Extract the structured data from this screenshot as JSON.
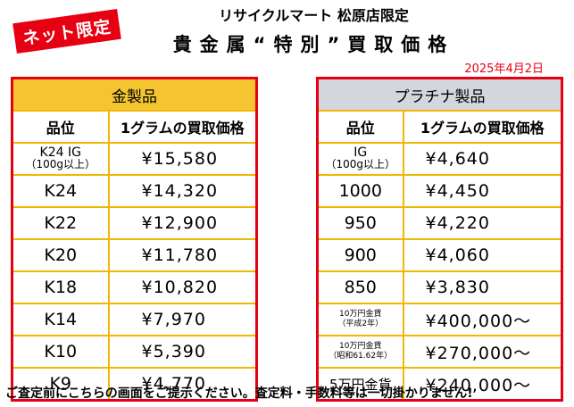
{
  "badge": "ネット限定",
  "shop_name": "リサイクルマート 松原店限定",
  "title": "貴金属“特別”買取価格",
  "date": "2025年4月2日",
  "gold_table": {
    "header": "金製品",
    "col_grade": "品位",
    "col_price": "1グラムの買取価格",
    "rows": [
      {
        "grade": "K24 IG",
        "note": "（100g以上）",
        "price": "¥15,580"
      },
      {
        "grade": "K24",
        "price": "¥14,320"
      },
      {
        "grade": "K22",
        "price": "¥12,900"
      },
      {
        "grade": "K20",
        "price": "¥11,780"
      },
      {
        "grade": "K18",
        "price": "¥10,820"
      },
      {
        "grade": "K14",
        "price": "¥7,970"
      },
      {
        "grade": "K10",
        "price": "¥5,390"
      },
      {
        "grade": "K9",
        "price": "¥4,770"
      }
    ]
  },
  "platinum_table": {
    "header": "プラチナ製品",
    "col_grade": "品位",
    "col_price": "1グラムの買取価格",
    "rows": [
      {
        "grade": "IG",
        "note": "（100g以上）",
        "price": "¥4,640"
      },
      {
        "grade": "1000",
        "price": "¥4,450"
      },
      {
        "grade": "950",
        "price": "¥4,220"
      },
      {
        "grade": "900",
        "price": "¥4,060"
      },
      {
        "grade": "850",
        "price": "¥3,830"
      },
      {
        "grade": "10万円金貨",
        "note": "（平成2年）",
        "price": "¥400,000〜"
      },
      {
        "grade": "10万円金貨",
        "note": "（昭和61.62年）",
        "price": "¥270,000〜"
      },
      {
        "grade": "5万円金貨",
        "price": "¥240,000〜"
      }
    ]
  },
  "footer": "ご査定前にこちらの画面をご提示ください。査定料・手数料等は一切掛かりません!"
}
